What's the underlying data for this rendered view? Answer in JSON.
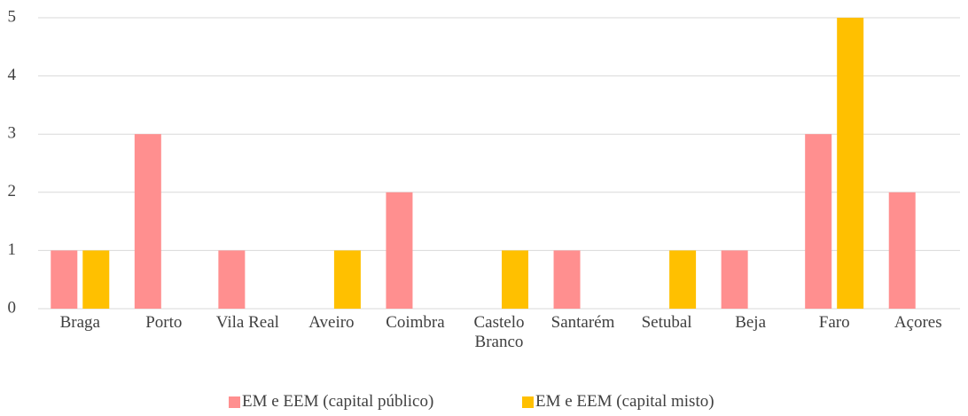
{
  "chart_data": {
    "type": "bar",
    "categories": [
      "Braga",
      "Porto",
      "Vila Real",
      "Aveiro",
      "Coimbra",
      "Castelo Branco",
      "Santarém",
      "Setubal",
      "Beja",
      "Faro",
      "Açores"
    ],
    "series": [
      {
        "name": "EM e EEM (capital público)",
        "color": "#ff8f8f",
        "values": [
          1,
          3,
          1,
          0,
          2,
          0,
          1,
          0,
          1,
          3,
          2
        ]
      },
      {
        "name": "EM e EEM (capital misto)",
        "color": "#ffc000",
        "values": [
          1,
          0,
          0,
          1,
          0,
          1,
          0,
          1,
          0,
          5,
          0
        ]
      }
    ],
    "ylim": [
      0,
      5
    ],
    "yticks": [
      0,
      1,
      2,
      3,
      4,
      5
    ],
    "grid": true,
    "legend": "bottom"
  }
}
